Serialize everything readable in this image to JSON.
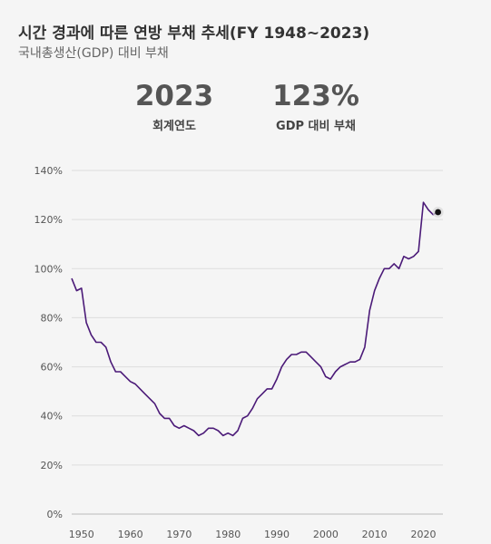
{
  "title": "시간 경과에 따른 연방 부채 추세(FY 1948~2023)",
  "subtitle": "국내총생산(GDP) 대비 부채",
  "stats": {
    "year_value": "2023",
    "year_label": "회계연도",
    "debt_value": "123%",
    "debt_label": "GDP 대비 부채"
  },
  "colors": {
    "line": "#4b1a78",
    "marker": "#111111",
    "grid": "#dddddd",
    "background": "#f5f5f5"
  },
  "chart_data": {
    "type": "line",
    "title": "시간 경과에 따른 연방 부채 추세(FY 1948~2023)",
    "subtitle": "국내총생산(GDP) 대비 부채",
    "xlabel": "",
    "ylabel": "",
    "xlim": [
      1948,
      2024
    ],
    "ylim": [
      0,
      140
    ],
    "y_ticks": [
      0,
      20,
      40,
      60,
      80,
      100,
      120,
      140
    ],
    "y_tick_labels": [
      "0%",
      "20%",
      "40%",
      "60%",
      "80%",
      "100%",
      "120%",
      "140%"
    ],
    "x_ticks": [
      1950,
      1960,
      1970,
      1980,
      1990,
      2000,
      2010,
      2020
    ],
    "x_tick_labels": [
      "1950",
      "1960",
      "1970",
      "1980",
      "1990",
      "2000",
      "2010",
      "2020"
    ],
    "grid": "horizontal",
    "series": [
      {
        "x": [
          1948,
          1949,
          1950,
          1951,
          1952,
          1953,
          1954,
          1955,
          1956,
          1957,
          1958,
          1959,
          1960,
          1961,
          1962,
          1963,
          1964,
          1965,
          1966,
          1967,
          1968,
          1969,
          1970,
          1971,
          1972,
          1973,
          1974,
          1975,
          1976,
          1977,
          1978,
          1979,
          1980,
          1981,
          1982,
          1983,
          1984,
          1985,
          1986,
          1987,
          1988,
          1989,
          1990,
          1991,
          1992,
          1993,
          1994,
          1995,
          1996,
          1997,
          1998,
          1999,
          2000,
          2001,
          2002,
          2003,
          2004,
          2005,
          2006,
          2007,
          2008,
          2009,
          2010,
          2011,
          2012,
          2013,
          2014,
          2015,
          2016,
          2017,
          2018,
          2019,
          2020,
          2021,
          2022,
          2023
        ],
        "y": [
          96,
          91,
          92,
          78,
          73,
          70,
          70,
          68,
          62,
          58,
          58,
          56,
          54,
          53,
          51,
          49,
          47,
          45,
          41,
          39,
          39,
          36,
          35,
          36,
          35,
          34,
          32,
          33,
          35,
          35,
          34,
          32,
          33,
          32,
          34,
          39,
          40,
          43,
          47,
          49,
          51,
          51,
          55,
          60,
          63,
          65,
          65,
          66,
          66,
          64,
          62,
          60,
          56,
          55,
          58,
          60,
          61,
          62,
          62,
          63,
          68,
          83,
          91,
          96,
          100,
          100,
          102,
          100,
          105,
          104,
          105,
          107,
          127,
          124,
          122,
          123
        ]
      }
    ],
    "highlight": {
      "x": 2023,
      "y": 123
    }
  }
}
